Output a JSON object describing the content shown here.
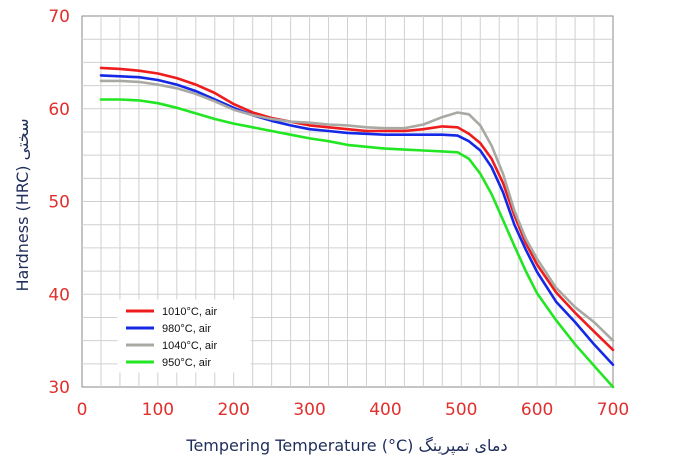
{
  "chart_data": {
    "type": "line",
    "title": "",
    "xlabel": "Tempering Temperature (°C) دمای تمپرینگ",
    "ylabel": "Hardness (HRC) سختی",
    "xlim": [
      0,
      700
    ],
    "ylim": [
      30,
      70
    ],
    "xticks": [
      "0",
      "100",
      "200",
      "300",
      "400",
      "500",
      "600",
      "700"
    ],
    "yticks": [
      "30",
      "40",
      "50",
      "60",
      "70"
    ],
    "grid": true,
    "legend_position": "lower-left",
    "series": [
      {
        "name": "1010°C, air",
        "color": "#ee1c1c",
        "x": [
          25,
          50,
          75,
          100,
          125,
          150,
          175,
          200,
          225,
          250,
          275,
          300,
          325,
          350,
          375,
          400,
          425,
          450,
          475,
          495,
          510,
          525,
          540,
          555,
          570,
          585,
          600,
          625,
          650,
          675,
          700
        ],
        "y": [
          64.4,
          64.3,
          64.1,
          63.8,
          63.3,
          62.6,
          61.7,
          60.5,
          59.6,
          59.0,
          58.6,
          58.2,
          58.0,
          57.8,
          57.6,
          57.6,
          57.6,
          57.8,
          58.1,
          58.0,
          57.3,
          56.3,
          54.6,
          52.0,
          48.5,
          45.5,
          43.2,
          40.2,
          38.0,
          36.0,
          34.0
        ]
      },
      {
        "name": "980°C, air",
        "color": "#1428e6",
        "x": [
          25,
          50,
          75,
          100,
          125,
          150,
          175,
          200,
          225,
          250,
          275,
          300,
          325,
          350,
          375,
          400,
          425,
          450,
          475,
          495,
          510,
          525,
          540,
          555,
          570,
          585,
          600,
          625,
          650,
          675,
          700
        ],
        "y": [
          63.6,
          63.5,
          63.4,
          63.1,
          62.6,
          61.9,
          61.0,
          60.1,
          59.3,
          58.7,
          58.2,
          57.8,
          57.6,
          57.4,
          57.3,
          57.2,
          57.2,
          57.2,
          57.2,
          57.1,
          56.5,
          55.5,
          53.7,
          51.0,
          47.5,
          44.8,
          42.4,
          39.2,
          37.0,
          34.6,
          32.4
        ]
      },
      {
        "name": "1040°C, air",
        "color": "#a9a9a4",
        "x": [
          25,
          50,
          75,
          100,
          125,
          150,
          175,
          200,
          225,
          250,
          275,
          300,
          325,
          350,
          375,
          400,
          425,
          450,
          475,
          495,
          510,
          525,
          540,
          555,
          570,
          585,
          600,
          625,
          650,
          675,
          700
        ],
        "y": [
          63.0,
          63.0,
          62.9,
          62.6,
          62.2,
          61.6,
          60.8,
          59.9,
          59.3,
          58.9,
          58.6,
          58.5,
          58.3,
          58.2,
          58.0,
          57.9,
          57.9,
          58.3,
          59.1,
          59.6,
          59.4,
          58.2,
          56.0,
          53.0,
          49.0,
          46.0,
          43.8,
          40.7,
          38.6,
          37.0,
          35.0
        ]
      },
      {
        "name": "950°C, air",
        "color": "#22e622",
        "x": [
          25,
          50,
          75,
          100,
          125,
          150,
          175,
          200,
          225,
          250,
          275,
          300,
          325,
          350,
          375,
          400,
          425,
          450,
          475,
          495,
          510,
          525,
          540,
          555,
          570,
          585,
          600,
          625,
          650,
          675,
          700
        ],
        "y": [
          61.0,
          61.0,
          60.9,
          60.6,
          60.1,
          59.5,
          58.9,
          58.4,
          58.0,
          57.6,
          57.2,
          56.8,
          56.5,
          56.1,
          55.9,
          55.7,
          55.6,
          55.5,
          55.4,
          55.3,
          54.6,
          53.0,
          50.8,
          48.0,
          45.2,
          42.5,
          40.1,
          37.2,
          34.6,
          32.3,
          30.0
        ]
      }
    ]
  }
}
